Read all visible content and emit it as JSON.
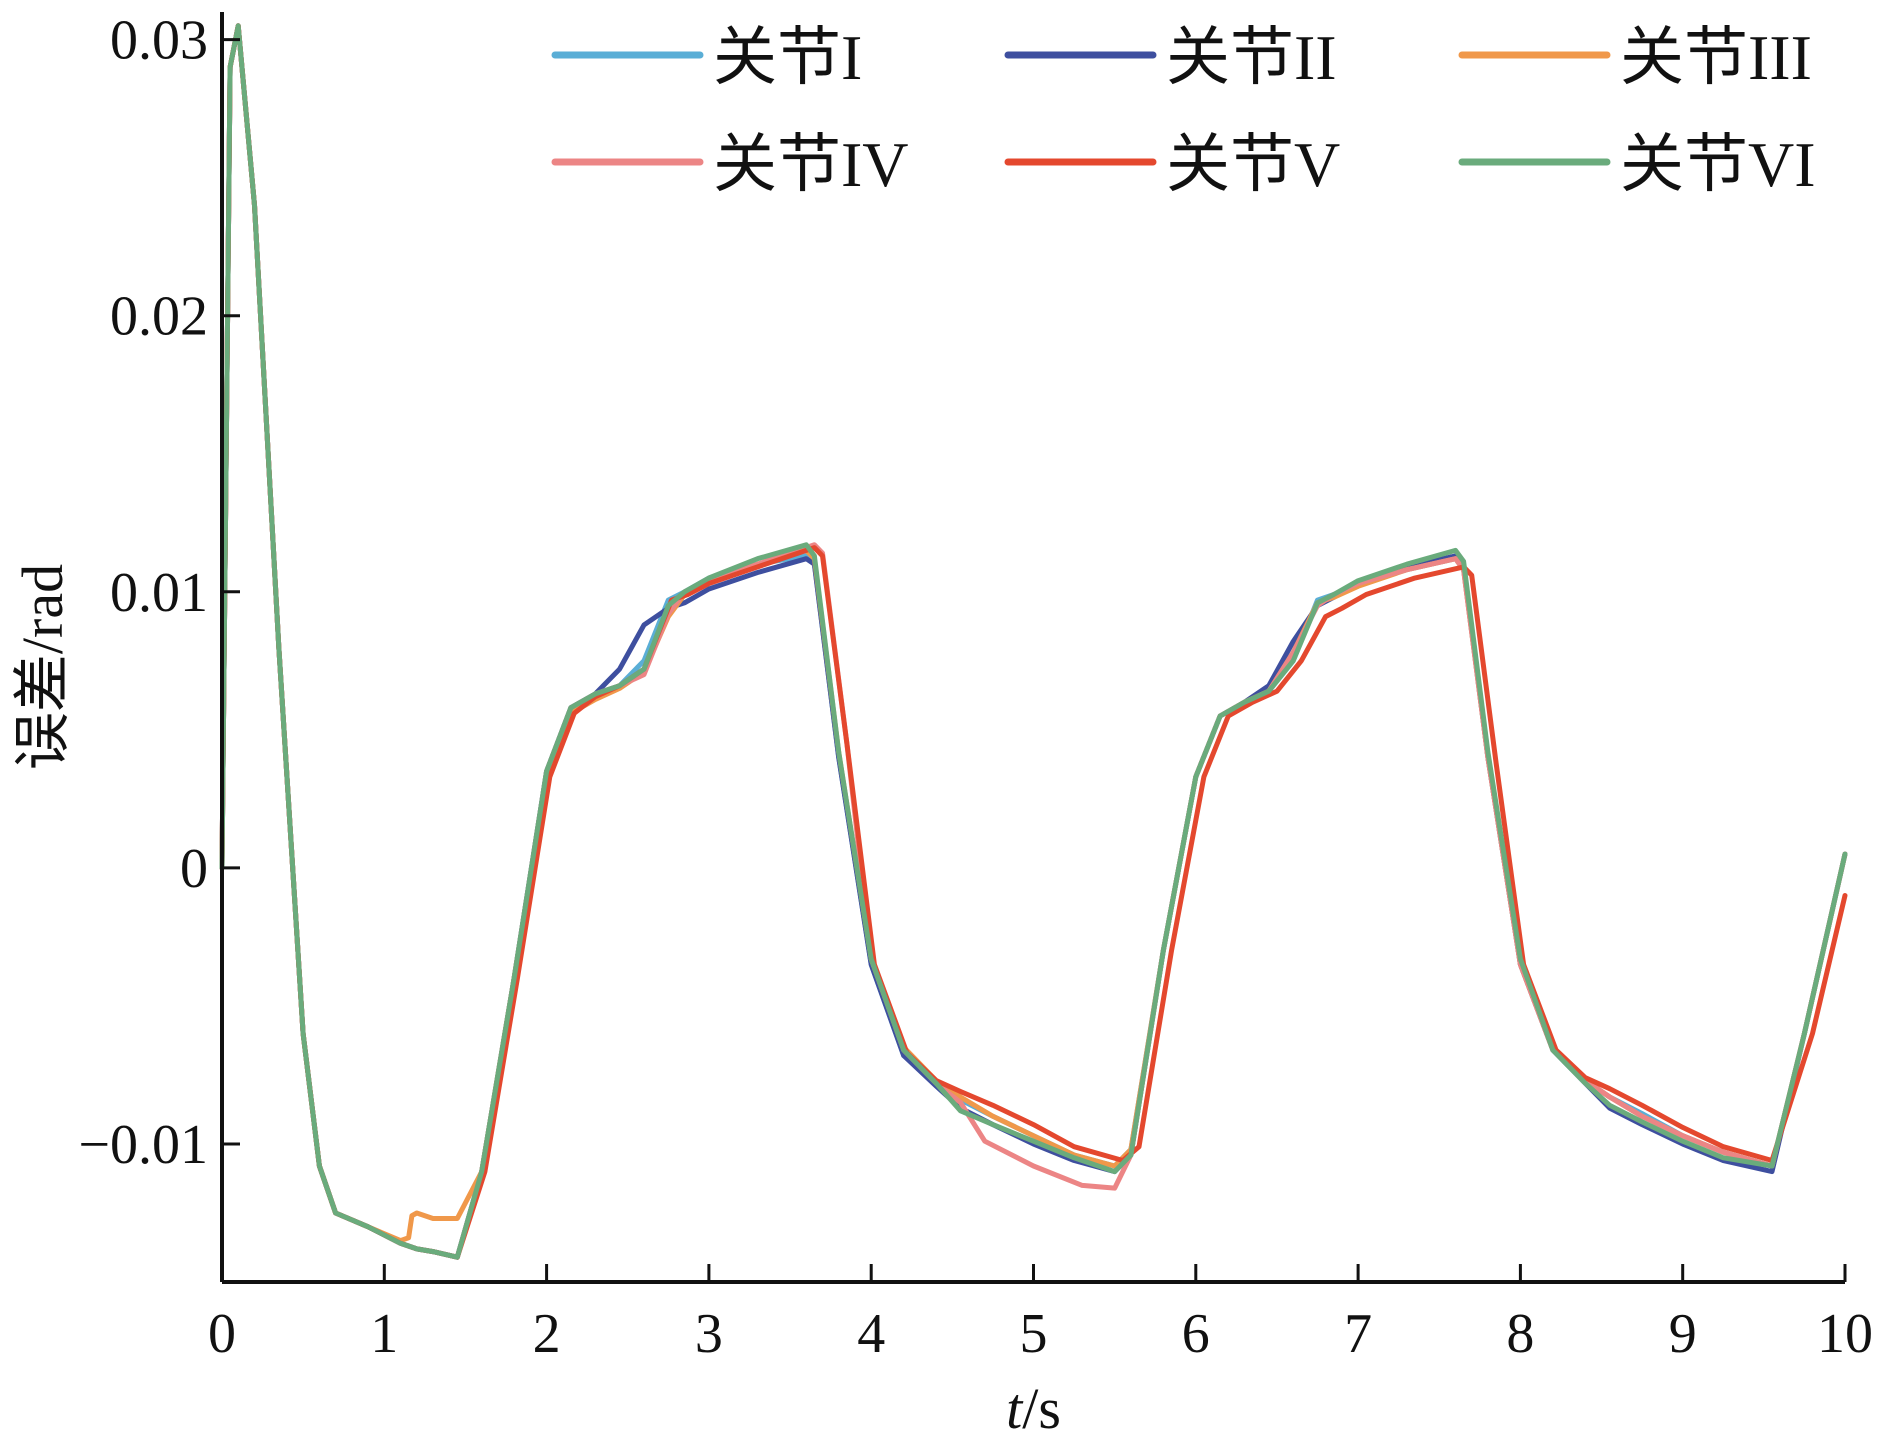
{
  "chart_data": {
    "type": "line",
    "xlabel_italic": "t",
    "xlabel_rest": "/s",
    "ylabel": "误差/rad",
    "xlim": [
      0,
      10
    ],
    "ylim": [
      -0.015,
      0.031
    ],
    "xticks": [
      0,
      1,
      2,
      3,
      4,
      5,
      6,
      7,
      8,
      9,
      10
    ],
    "xtick_labels": [
      "0",
      "1",
      "2",
      "3",
      "4",
      "5",
      "6",
      "7",
      "8",
      "9",
      "10"
    ],
    "yticks": [
      -0.01,
      0,
      0.01,
      0.02,
      0.03
    ],
    "ytick_labels": [
      "−0.01",
      "0",
      "0.01",
      "0.02",
      "0.03"
    ],
    "legend_position": "top",
    "series": [
      {
        "name": "关节I",
        "color": "#5aaed6",
        "x": [
          0,
          0.05,
          0.1,
          0.2,
          0.35,
          0.5,
          0.6,
          0.7,
          0.9,
          1.1,
          1.2,
          1.3,
          1.45,
          1.6,
          1.8,
          2.0,
          2.15,
          2.3,
          2.45,
          2.6,
          2.75,
          2.85,
          3.0,
          3.3,
          3.6,
          3.65,
          3.8,
          4.0,
          4.2,
          4.4,
          4.55,
          4.75,
          5.0,
          5.25,
          5.5,
          5.6,
          5.8,
          6.0,
          6.15,
          6.3,
          6.45,
          6.6,
          6.75,
          6.85,
          7.0,
          7.3,
          7.6,
          7.65,
          7.8,
          8.0,
          8.2,
          8.4,
          8.55,
          8.75,
          9.0,
          9.25,
          9.55,
          9.75,
          10.0
        ],
        "y": [
          0.0,
          0.029,
          0.0305,
          0.024,
          0.008,
          -0.006,
          -0.0108,
          -0.0125,
          -0.013,
          -0.0136,
          -0.0138,
          -0.0139,
          -0.0141,
          -0.011,
          -0.004,
          0.0035,
          0.0058,
          0.0063,
          0.0066,
          0.0075,
          0.0097,
          0.01,
          0.0105,
          0.011,
          0.0113,
          0.011,
          0.004,
          -0.0035,
          -0.0068,
          -0.0078,
          -0.0084,
          -0.009,
          -0.0097,
          -0.0104,
          -0.0108,
          -0.0102,
          -0.003,
          0.0033,
          0.0055,
          0.006,
          0.0064,
          0.0075,
          0.0097,
          0.0099,
          0.0103,
          0.0108,
          0.0112,
          0.0108,
          0.004,
          -0.0035,
          -0.0066,
          -0.0077,
          -0.0083,
          -0.0089,
          -0.0097,
          -0.0103,
          -0.0108,
          -0.006,
          0.0005
        ]
      },
      {
        "name": "关节II",
        "color": "#3e4f9f",
        "x": [
          0,
          0.05,
          0.1,
          0.2,
          0.35,
          0.5,
          0.6,
          0.7,
          0.9,
          1.1,
          1.2,
          1.3,
          1.45,
          1.6,
          1.8,
          2.0,
          2.15,
          2.3,
          2.45,
          2.6,
          2.75,
          2.85,
          3.0,
          3.3,
          3.6,
          3.65,
          3.8,
          4.0,
          4.2,
          4.4,
          4.55,
          4.75,
          5.0,
          5.25,
          5.5,
          5.6,
          5.8,
          6.0,
          6.15,
          6.3,
          6.45,
          6.6,
          6.75,
          6.85,
          7.0,
          7.3,
          7.6,
          7.65,
          7.8,
          8.0,
          8.2,
          8.4,
          8.55,
          8.75,
          9.0,
          9.25,
          9.55,
          9.75,
          10.0
        ],
        "y": [
          0.0,
          0.029,
          0.0305,
          0.024,
          0.008,
          -0.006,
          -0.0108,
          -0.0125,
          -0.013,
          -0.0136,
          -0.0138,
          -0.0139,
          -0.0141,
          -0.011,
          -0.004,
          0.0035,
          0.0058,
          0.0063,
          0.0072,
          0.0088,
          0.0094,
          0.0096,
          0.0101,
          0.0107,
          0.0112,
          0.011,
          0.004,
          -0.0035,
          -0.0068,
          -0.0079,
          -0.0087,
          -0.0093,
          -0.01,
          -0.0106,
          -0.011,
          -0.0104,
          -0.003,
          0.0033,
          0.0055,
          0.006,
          0.0066,
          0.0082,
          0.0095,
          0.0098,
          0.0103,
          0.0109,
          0.0113,
          0.0109,
          0.004,
          -0.0035,
          -0.0066,
          -0.0078,
          -0.0087,
          -0.0093,
          -0.01,
          -0.0106,
          -0.011,
          -0.006,
          0.0005
        ]
      },
      {
        "name": "关节III",
        "color": "#f0984a",
        "x": [
          0,
          0.05,
          0.1,
          0.2,
          0.35,
          0.5,
          0.6,
          0.7,
          0.9,
          1.1,
          1.15,
          1.17,
          1.2,
          1.3,
          1.45,
          1.6,
          1.8,
          2.0,
          2.15,
          2.3,
          2.45,
          2.6,
          2.75,
          2.85,
          3.0,
          3.3,
          3.6,
          3.65,
          3.8,
          4.0,
          4.2,
          4.4,
          4.55,
          4.75,
          5.0,
          5.25,
          5.5,
          5.6,
          5.8,
          6.0,
          6.15,
          6.3,
          6.45,
          6.6,
          6.75,
          6.85,
          7.0,
          7.3,
          7.6,
          7.65,
          7.8,
          8.0,
          8.2,
          8.4,
          8.55,
          8.75,
          9.0,
          9.25,
          9.55,
          9.75,
          10.0
        ],
        "y": [
          0.0,
          0.029,
          0.0305,
          0.024,
          0.008,
          -0.006,
          -0.0108,
          -0.0125,
          -0.013,
          -0.0135,
          -0.0134,
          -0.0126,
          -0.0125,
          -0.0127,
          -0.0127,
          -0.011,
          -0.004,
          0.0033,
          0.0056,
          0.0061,
          0.0065,
          0.0071,
          0.0091,
          0.0099,
          0.0104,
          0.011,
          0.0115,
          0.0112,
          0.0042,
          -0.0033,
          -0.0065,
          -0.0077,
          -0.0083,
          -0.009,
          -0.0097,
          -0.0104,
          -0.0108,
          -0.0102,
          -0.003,
          0.0033,
          0.0055,
          0.006,
          0.0064,
          0.0078,
          0.0096,
          0.0098,
          0.0102,
          0.0108,
          0.0112,
          0.0108,
          0.004,
          -0.0035,
          -0.0066,
          -0.0077,
          -0.0083,
          -0.009,
          -0.0097,
          -0.0103,
          -0.0108,
          -0.006,
          0.0005
        ]
      },
      {
        "name": "关节IV",
        "color": "#ec8585",
        "x": [
          0,
          0.05,
          0.1,
          0.2,
          0.35,
          0.5,
          0.6,
          0.7,
          0.9,
          1.1,
          1.2,
          1.3,
          1.45,
          1.6,
          1.8,
          2.0,
          2.15,
          2.3,
          2.45,
          2.6,
          2.75,
          2.85,
          3.0,
          3.3,
          3.65,
          3.7,
          3.85,
          4.0,
          4.2,
          4.4,
          4.55,
          4.7,
          5.0,
          5.3,
          5.5,
          5.6,
          5.8,
          6.0,
          6.15,
          6.3,
          6.45,
          6.6,
          6.75,
          6.85,
          7.0,
          7.3,
          7.6,
          7.65,
          7.8,
          8.0,
          8.2,
          8.4,
          8.55,
          8.75,
          9.0,
          9.25,
          9.55,
          9.75,
          10.0
        ],
        "y": [
          0.0,
          0.029,
          0.0305,
          0.024,
          0.008,
          -0.006,
          -0.0108,
          -0.0125,
          -0.013,
          -0.0136,
          -0.0138,
          -0.0139,
          -0.0141,
          -0.011,
          -0.004,
          0.0035,
          0.0058,
          0.0063,
          0.0066,
          0.007,
          0.0092,
          0.01,
          0.0104,
          0.011,
          0.0117,
          0.0114,
          0.0045,
          -0.0033,
          -0.0066,
          -0.0078,
          -0.0085,
          -0.0099,
          -0.0108,
          -0.0115,
          -0.0116,
          -0.0104,
          -0.003,
          0.0033,
          0.0055,
          0.006,
          0.0064,
          0.0078,
          0.0095,
          0.0099,
          0.0103,
          0.0108,
          0.0112,
          0.0108,
          0.004,
          -0.0035,
          -0.0066,
          -0.0077,
          -0.0083,
          -0.009,
          -0.0097,
          -0.0103,
          -0.0108,
          -0.006,
          0.0005
        ]
      },
      {
        "name": "关节V",
        "color": "#e4482e",
        "x": [
          0,
          0.05,
          0.1,
          0.2,
          0.35,
          0.5,
          0.6,
          0.7,
          0.9,
          1.1,
          1.2,
          1.3,
          1.45,
          1.62,
          1.82,
          2.02,
          2.17,
          2.3,
          2.45,
          2.6,
          2.77,
          2.87,
          3.0,
          3.3,
          3.65,
          3.7,
          3.85,
          4.02,
          4.22,
          4.4,
          4.55,
          4.75,
          5.0,
          5.25,
          5.55,
          5.65,
          5.85,
          6.05,
          6.2,
          6.35,
          6.5,
          6.65,
          6.8,
          6.9,
          7.05,
          7.35,
          7.65,
          7.7,
          7.85,
          8.02,
          8.22,
          8.4,
          8.55,
          8.75,
          9.0,
          9.25,
          9.55,
          9.8,
          10.0
        ],
        "y": [
          0.0,
          0.029,
          0.0305,
          0.024,
          0.008,
          -0.006,
          -0.0108,
          -0.0125,
          -0.013,
          -0.0136,
          -0.0138,
          -0.0139,
          -0.0141,
          -0.011,
          -0.004,
          0.0033,
          0.0056,
          0.0062,
          0.0066,
          0.0072,
          0.0097,
          0.0099,
          0.0103,
          0.0109,
          0.0116,
          0.0113,
          0.0045,
          -0.0035,
          -0.0067,
          -0.0077,
          -0.0081,
          -0.0086,
          -0.0093,
          -0.0101,
          -0.0106,
          -0.0101,
          -0.003,
          0.0033,
          0.0055,
          0.006,
          0.0064,
          0.0075,
          0.0091,
          0.0094,
          0.0099,
          0.0105,
          0.0109,
          0.0106,
          0.0038,
          -0.0035,
          -0.0066,
          -0.0076,
          -0.008,
          -0.0086,
          -0.0094,
          -0.0101,
          -0.0106,
          -0.006,
          -0.001
        ]
      },
      {
        "name": "关节VI",
        "color": "#6aab7c",
        "x": [
          0,
          0.05,
          0.1,
          0.2,
          0.35,
          0.5,
          0.6,
          0.7,
          0.9,
          1.1,
          1.2,
          1.3,
          1.45,
          1.6,
          1.8,
          2.0,
          2.15,
          2.3,
          2.45,
          2.6,
          2.75,
          2.85,
          3.0,
          3.3,
          3.6,
          3.65,
          3.8,
          4.0,
          4.2,
          4.4,
          4.55,
          4.75,
          5.0,
          5.25,
          5.5,
          5.6,
          5.8,
          6.0,
          6.15,
          6.3,
          6.45,
          6.6,
          6.75,
          6.85,
          7.0,
          7.3,
          7.6,
          7.65,
          7.8,
          8.0,
          8.2,
          8.4,
          8.55,
          8.75,
          9.0,
          9.25,
          9.55,
          9.75,
          10.0
        ],
        "y": [
          0.0,
          0.029,
          0.0305,
          0.024,
          0.008,
          -0.006,
          -0.0108,
          -0.0125,
          -0.013,
          -0.0136,
          -0.0138,
          -0.0139,
          -0.0141,
          -0.011,
          -0.004,
          0.0035,
          0.0058,
          0.0063,
          0.0066,
          0.0072,
          0.0095,
          0.01,
          0.0105,
          0.0112,
          0.0117,
          0.0113,
          0.0042,
          -0.0033,
          -0.0066,
          -0.0078,
          -0.0088,
          -0.0093,
          -0.0099,
          -0.0105,
          -0.011,
          -0.0104,
          -0.003,
          0.0033,
          0.0055,
          0.006,
          0.0064,
          0.0075,
          0.0096,
          0.0099,
          0.0104,
          0.011,
          0.0115,
          0.0111,
          0.0042,
          -0.0033,
          -0.0066,
          -0.0078,
          -0.0086,
          -0.0092,
          -0.0099,
          -0.0105,
          -0.0108,
          -0.006,
          0.0005
        ]
      }
    ]
  }
}
